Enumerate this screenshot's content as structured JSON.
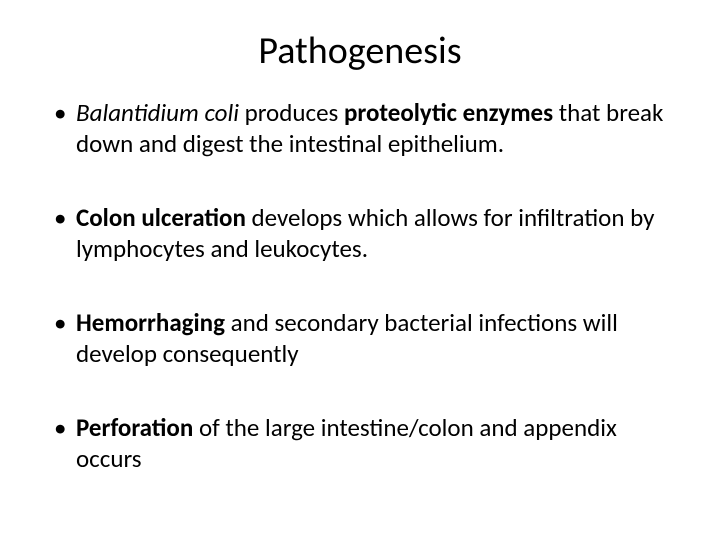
{
  "slide": {
    "title": "Pathogenesis",
    "bullets": [
      {
        "seg1_italic": "Balantidium coli",
        "seg2_plain": " produces ",
        "seg3_bold": "proteolytic enzymes",
        "seg4_plain": " that break down and digest the intestinal epithelium."
      },
      {
        "seg1_bold": "Colon ulceration",
        "seg2_plain": " develops which allows for infiltration by lymphocytes and leukocytes."
      },
      {
        "seg1_bold": "Hemorrhaging",
        "seg2_plain": " and secondary bacterial infections will develop consequently"
      },
      {
        "seg1_bold": "Perforation",
        "seg2_plain": " of the large intestine/colon and appendix occurs"
      }
    ],
    "colors": {
      "background": "#ffffff",
      "text": "#000000"
    },
    "typography": {
      "title_fontsize": 38,
      "body_fontsize": 25,
      "font_family": "Calibri"
    }
  }
}
